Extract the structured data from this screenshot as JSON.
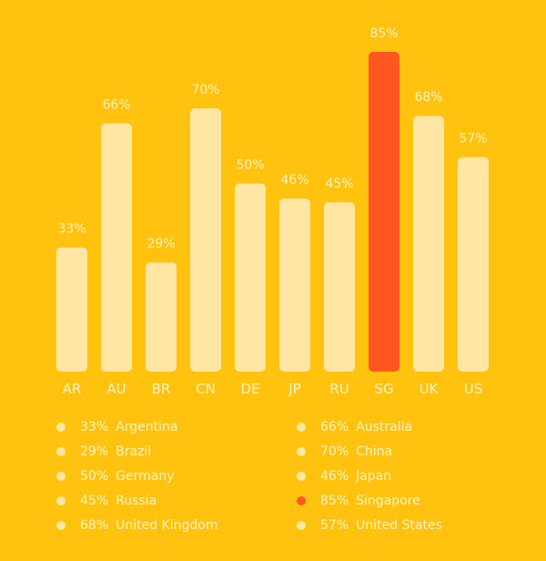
{
  "chart_data": {
    "type": "bar",
    "categories": [
      "AR",
      "AU",
      "BR",
      "CN",
      "DE",
      "JP",
      "RU",
      "SG",
      "UK",
      "US"
    ],
    "values": [
      33,
      66,
      29,
      70,
      50,
      46,
      45,
      85,
      68,
      57
    ],
    "value_labels": [
      "33%",
      "66%",
      "29%",
      "70%",
      "50%",
      "46%",
      "45%",
      "85%",
      "68%",
      "57%"
    ],
    "highlight_category": "SG",
    "ylim": [
      0,
      85
    ],
    "grid": false,
    "colors": {
      "background": "#FFC20E",
      "bar": "#FFE7A3",
      "bar_highlight": "#FF5722",
      "text": "#FFF3C4"
    },
    "legend": {
      "position": "bottom",
      "items": [
        {
          "percent": "33%",
          "name": "Argentina"
        },
        {
          "percent": "66%",
          "name": "Australia"
        },
        {
          "percent": "29%",
          "name": "Brazil"
        },
        {
          "percent": "70%",
          "name": "China"
        },
        {
          "percent": "50%",
          "name": "Germany"
        },
        {
          "percent": "46%",
          "name": "Japan"
        },
        {
          "percent": "45%",
          "name": "Russia"
        },
        {
          "percent": "85%",
          "name": "Singapore",
          "highlight": true
        },
        {
          "percent": "68%",
          "name": "United Kingdom"
        },
        {
          "percent": "57%",
          "name": "United States"
        }
      ]
    }
  }
}
